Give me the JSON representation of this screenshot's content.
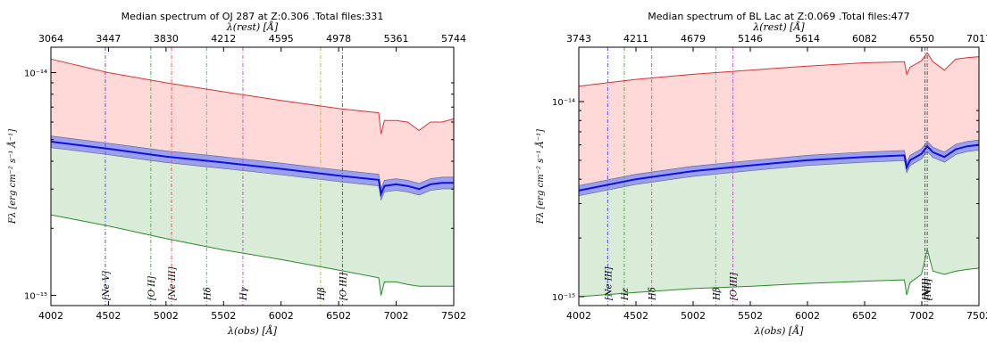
{
  "chart_data": [
    {
      "type": "area",
      "title": "Median spectrum of OJ 287 at Z:0.306 .Total files:331",
      "xlabel": "λ(obs) [Å]",
      "x2label": "λ(rest) [Å]",
      "ylabel": "Fλ [erg cm⁻² s⁻¹ Å⁻¹]",
      "xlim": [
        4002,
        7502
      ],
      "x_ticks": [
        "4002",
        "4502",
        "5002",
        "5502",
        "6002",
        "6502",
        "7002",
        "7502"
      ],
      "x2_ticks": [
        "3064",
        "3447",
        "3830",
        "4212",
        "4595",
        "4978",
        "5361",
        "5744"
      ],
      "y_scale": "log",
      "ylim": [
        9e-16,
        1.3e-14
      ],
      "y_ticks": [
        {
          "value": 1e-15,
          "label": "10⁻¹⁵"
        },
        {
          "value": 1e-14,
          "label": "10⁻¹⁴"
        }
      ],
      "grid": false,
      "series": [
        {
          "role": "upper",
          "color": "#e03030",
          "fill": "#ffd8d8",
          "x": [
            4002,
            4500,
            5000,
            5500,
            6000,
            6500,
            6850,
            6870,
            6900,
            7000,
            7100,
            7200,
            7300,
            7400,
            7502
          ],
          "y": [
            1.15e-14,
            1e-14,
            9e-15,
            8.2e-15,
            7.5e-15,
            6.9e-15,
            6.6e-15,
            5.3e-15,
            6.1e-15,
            6.1e-15,
            6e-15,
            5.5e-15,
            6e-15,
            6e-15,
            6.2e-15
          ]
        },
        {
          "role": "median",
          "color": "#1010e0",
          "fill": "#9aa0ee",
          "x": [
            4002,
            4500,
            5000,
            5500,
            6000,
            6500,
            6850,
            6870,
            6900,
            7000,
            7100,
            7200,
            7300,
            7400,
            7502
          ],
          "y": [
            4.9e-15,
            4.55e-15,
            4.2e-15,
            3.95e-15,
            3.7e-15,
            3.45e-15,
            3.3e-15,
            2.85e-15,
            3.1e-15,
            3.15e-15,
            3.1e-15,
            3e-15,
            3.15e-15,
            3.2e-15,
            3.2e-15
          ]
        },
        {
          "role": "lower",
          "color": "#2a8a2a",
          "fill": "#d8ecd8",
          "x": [
            4002,
            4500,
            5000,
            5500,
            6000,
            6500,
            6850,
            6870,
            6900,
            7000,
            7100,
            7200,
            7300,
            7400,
            7502
          ],
          "y": [
            2.3e-15,
            2.05e-15,
            1.8e-15,
            1.6e-15,
            1.45e-15,
            1.3e-15,
            1.2e-15,
            1e-15,
            1.15e-15,
            1.15e-15,
            1.12e-15,
            1.1e-15,
            1.1e-15,
            1.1e-15,
            1.1e-15
          ]
        }
      ],
      "lines": [
        {
          "label": "[Ne V]",
          "x": 4475,
          "color": "#5555ff"
        },
        {
          "label": "[O II]",
          "x": 4870,
          "color": "#55aa55"
        },
        {
          "label": "[Ne III]",
          "x": 5050,
          "color": "#ff5555"
        },
        {
          "label": "Hδ",
          "x": 5355,
          "color": "#55bbbb"
        },
        {
          "label": "Hγ",
          "x": 5670,
          "color": "#cc55cc"
        },
        {
          "label": "Hβ",
          "x": 6345,
          "color": "#bbbb44"
        },
        {
          "label": "[O III]",
          "x": 6535,
          "color": "#555555"
        }
      ]
    },
    {
      "type": "area",
      "title": "Median spectrum of BL Lac at Z:0.069 .Total files:477",
      "xlabel": "λ(obs) [Å]",
      "x2label": "λ(rest) [Å]",
      "ylabel": "Fλ [erg cm⁻² s⁻¹ Å⁻¹]",
      "xlim": [
        4002,
        7502
      ],
      "x_ticks": [
        "4002",
        "4502",
        "5002",
        "5502",
        "6002",
        "6502",
        "7002",
        "7502"
      ],
      "x2_ticks": [
        "3743",
        "4211",
        "4679",
        "5146",
        "5614",
        "6082",
        "6550",
        "7017"
      ],
      "y_scale": "log",
      "ylim": [
        9e-16,
        1.9e-14
      ],
      "y_ticks": [
        {
          "value": 1e-15,
          "label": "10⁻¹⁵"
        },
        {
          "value": 1e-14,
          "label": "10⁻¹⁴"
        }
      ],
      "grid": false,
      "series": [
        {
          "role": "upper",
          "color": "#e03030",
          "fill": "#ffd8d8",
          "x": [
            4002,
            4500,
            5000,
            5500,
            6000,
            6500,
            6850,
            6870,
            6900,
            7000,
            7050,
            7100,
            7200,
            7300,
            7400,
            7502
          ],
          "y": [
            1.2e-14,
            1.3e-14,
            1.38e-14,
            1.45e-14,
            1.52e-14,
            1.58e-14,
            1.6e-14,
            1.38e-14,
            1.5e-14,
            1.62e-14,
            1.78e-14,
            1.6e-14,
            1.45e-14,
            1.65e-14,
            1.68e-14,
            1.7e-14
          ]
        },
        {
          "role": "median",
          "color": "#1010e0",
          "fill": "#9aa0ee",
          "x": [
            4002,
            4500,
            5000,
            5500,
            6000,
            6500,
            6850,
            6870,
            6900,
            7000,
            7050,
            7100,
            7200,
            7300,
            7400,
            7502
          ],
          "y": [
            3.5e-15,
            4e-15,
            4.4e-15,
            4.7e-15,
            5e-15,
            5.2e-15,
            5.3e-15,
            4.6e-15,
            5e-15,
            5.4e-15,
            5.9e-15,
            5.5e-15,
            5.2e-15,
            5.7e-15,
            5.9e-15,
            6e-15
          ]
        },
        {
          "role": "lower",
          "color": "#2a8a2a",
          "fill": "#d8ecd8",
          "x": [
            4002,
            4500,
            5000,
            5500,
            6000,
            6500,
            6850,
            6870,
            6900,
            7000,
            7050,
            7100,
            7200,
            7300,
            7400,
            7502
          ],
          "y": [
            1e-15,
            1.05e-15,
            1.1e-15,
            1.13e-15,
            1.17e-15,
            1.2e-15,
            1.22e-15,
            1.02e-15,
            1.18e-15,
            1.3e-15,
            1.75e-15,
            1.35e-15,
            1.3e-15,
            1.35e-15,
            1.38e-15,
            1.4e-15
          ]
        }
      ],
      "lines": [
        {
          "label": "[Ne III]",
          "x": 4255,
          "color": "#5555ff"
        },
        {
          "label": "Hε",
          "x": 4400,
          "color": "#55aa55"
        },
        {
          "label": "Hδ",
          "x": 4640,
          "color": "#ff5555"
        },
        {
          "label": "Hβ",
          "x": 5200,
          "color": "#55bbbb"
        },
        {
          "label": "[O III]",
          "x": 5350,
          "color": "#cc55cc"
        },
        {
          "label": "[NII]",
          "x": 7030,
          "color": "#555555"
        },
        {
          "label": "[NII]",
          "x": 7050,
          "color": "#555555"
        }
      ]
    }
  ]
}
